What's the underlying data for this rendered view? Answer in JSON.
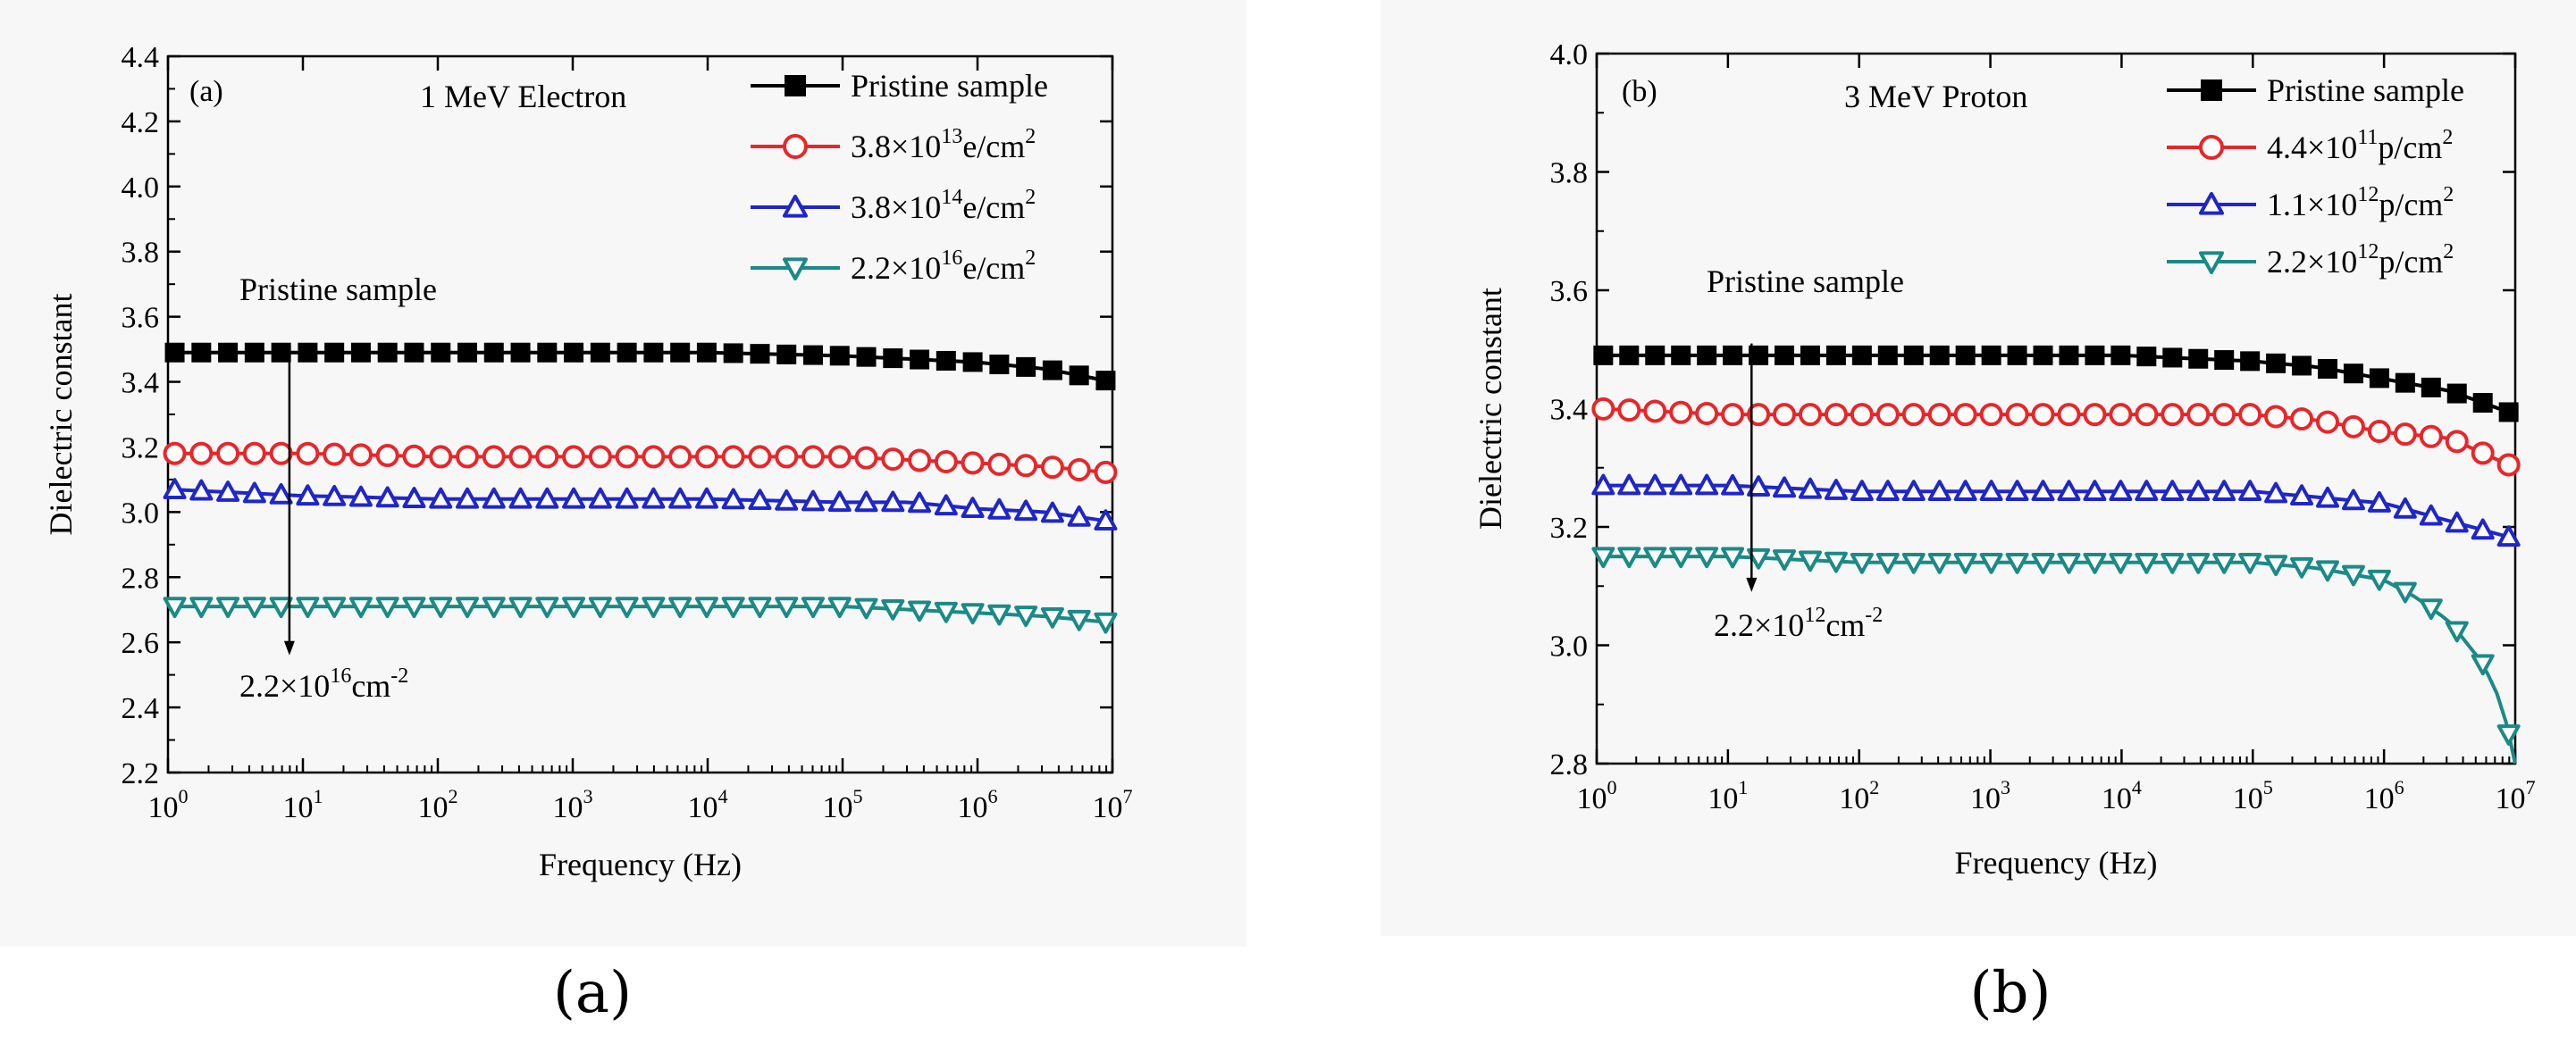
{
  "captions": {
    "a": "(a)",
    "b": "(b)"
  },
  "chart_data": [
    {
      "type": "line",
      "panel_label": "(a)",
      "title": "1 MeV Electron",
      "xlabel": "Frequency (Hz)",
      "ylabel": "Dielectric constant",
      "xscale": "log",
      "xlim": [
        1,
        10000000
      ],
      "ylim": [
        2.2,
        4.4
      ],
      "y_ticks": [
        2.2,
        2.4,
        2.6,
        2.8,
        3.0,
        3.2,
        3.4,
        3.6,
        3.8,
        4.0,
        4.2,
        4.4
      ],
      "y_tick_labels": [
        "2.2",
        "2.4",
        "2.6",
        "2.8",
        "3.0",
        "3.2",
        "3.4",
        "3.6",
        "3.8",
        "4.0",
        "4.2",
        "4.4"
      ],
      "x_tick_exponents": [
        "0",
        "1",
        "2",
        "3",
        "4",
        "5",
        "6",
        "7"
      ],
      "x_tick_base": "10",
      "legend_position": "top-right",
      "series": [
        {
          "name": "Pristine sample",
          "legend_mantissa": "",
          "legend_exponent": "",
          "legend_unit": "",
          "color": "#000000",
          "marker": "square",
          "log_f": [
            0,
            1,
            2,
            3,
            4,
            5,
            5.5,
            6,
            6.5,
            7
          ],
          "values": [
            3.49,
            3.49,
            3.49,
            3.49,
            3.49,
            3.48,
            3.47,
            3.46,
            3.44,
            3.4
          ]
        },
        {
          "name": "3.8×10^13e/cm^2",
          "legend_mantissa": "3.8×10",
          "legend_exponent": "13",
          "legend_unit": "e/cm",
          "color": "#e8262a",
          "marker": "circle",
          "log_f": [
            0,
            1,
            2,
            3,
            4,
            5,
            5.5,
            6,
            6.5,
            7
          ],
          "values": [
            3.18,
            3.18,
            3.17,
            3.17,
            3.17,
            3.17,
            3.16,
            3.15,
            3.14,
            3.12
          ]
        },
        {
          "name": "3.8×10^14e/cm^2",
          "legend_mantissa": "3.8×10",
          "legend_exponent": "14",
          "legend_unit": "e/cm",
          "color": "#1f26c9",
          "marker": "triangle-up",
          "log_f": [
            0,
            1,
            2,
            3,
            4,
            5,
            5.5,
            6,
            6.5,
            7
          ],
          "values": [
            3.07,
            3.05,
            3.04,
            3.04,
            3.04,
            3.03,
            3.03,
            3.01,
            3.0,
            2.97
          ]
        },
        {
          "name": "2.2×10^16e/cm^2",
          "legend_mantissa": "2.2×10",
          "legend_exponent": "16",
          "legend_unit": "e/cm",
          "color": "#1b8a87",
          "marker": "triangle-down",
          "log_f": [
            0,
            1,
            2,
            3,
            4,
            5,
            5.5,
            6,
            6.5,
            7
          ],
          "values": [
            2.71,
            2.71,
            2.71,
            2.71,
            2.71,
            2.71,
            2.7,
            2.69,
            2.68,
            2.66
          ]
        }
      ],
      "annotation": {
        "top_text": "Pristine sample",
        "bottom_mantissa": "2.2×10",
        "bottom_exponent": "16",
        "bottom_unit": "cm",
        "bottom_unit_exp": "-2",
        "x_log": 0.9,
        "y_from": 3.51,
        "y_to": 2.56
      }
    },
    {
      "type": "line",
      "panel_label": "(b)",
      "title": "3 MeV Proton",
      "xlabel": "Frequency (Hz)",
      "ylabel": "Dielectric constant",
      "xscale": "log",
      "xlim": [
        1,
        10000000
      ],
      "ylim": [
        2.8,
        4.0
      ],
      "y_ticks": [
        2.8,
        3.0,
        3.2,
        3.4,
        3.6,
        3.8,
        4.0
      ],
      "y_tick_labels": [
        "2.8",
        "3.0",
        "3.2",
        "3.4",
        "3.6",
        "3.8",
        "4.0"
      ],
      "x_tick_exponents": [
        "0",
        "1",
        "2",
        "3",
        "4",
        "5",
        "6",
        "7"
      ],
      "x_tick_base": "10",
      "legend_position": "top-right",
      "series": [
        {
          "name": "Pristine sample",
          "legend_mantissa": "",
          "legend_exponent": "",
          "legend_unit": "",
          "color": "#000000",
          "marker": "square",
          "log_f": [
            0,
            1,
            2,
            3,
            4,
            5,
            5.5,
            6,
            6.5,
            7
          ],
          "values": [
            3.49,
            3.49,
            3.49,
            3.49,
            3.49,
            3.48,
            3.47,
            3.45,
            3.43,
            3.39
          ]
        },
        {
          "name": "4.4×10^11p/cm^2",
          "legend_mantissa": "4.4×10",
          "legend_exponent": "11",
          "legend_unit": "p/cm",
          "color": "#e8262a",
          "marker": "circle",
          "log_f": [
            0,
            1,
            2,
            3,
            4,
            5,
            5.5,
            6,
            6.5,
            7
          ],
          "values": [
            3.4,
            3.39,
            3.39,
            3.39,
            3.39,
            3.39,
            3.38,
            3.36,
            3.35,
            3.3
          ]
        },
        {
          "name": "1.1×10^12p/cm^2",
          "legend_mantissa": "1.1×10",
          "legend_exponent": "12",
          "legend_unit": "p/cm",
          "color": "#1f26c9",
          "marker": "triangle-up",
          "log_f": [
            0,
            1,
            2,
            3,
            4,
            5,
            5.5,
            6,
            6.5,
            7
          ],
          "values": [
            3.27,
            3.27,
            3.26,
            3.26,
            3.26,
            3.26,
            3.25,
            3.24,
            3.21,
            3.18
          ]
        },
        {
          "name": "2.2×10^12p/cm^2",
          "legend_mantissa": "2.2×10",
          "legend_exponent": "12",
          "legend_unit": "p/cm",
          "color": "#1b8a87",
          "marker": "triangle-down",
          "log_f": [
            0,
            1,
            2,
            3,
            4,
            5,
            5.5,
            6,
            6.25,
            6.5,
            6.75,
            6.9,
            7
          ],
          "values": [
            3.15,
            3.15,
            3.14,
            3.14,
            3.14,
            3.14,
            3.13,
            3.11,
            3.08,
            3.04,
            2.97,
            2.9,
            2.8
          ]
        }
      ],
      "annotation": {
        "top_text": "Pristine sample",
        "bottom_mantissa": "2.2×10",
        "bottom_exponent": "12",
        "bottom_unit": "cm",
        "bottom_unit_exp": "-2",
        "x_log": 1.18,
        "y_from": 3.51,
        "y_to": 3.09
      }
    }
  ]
}
